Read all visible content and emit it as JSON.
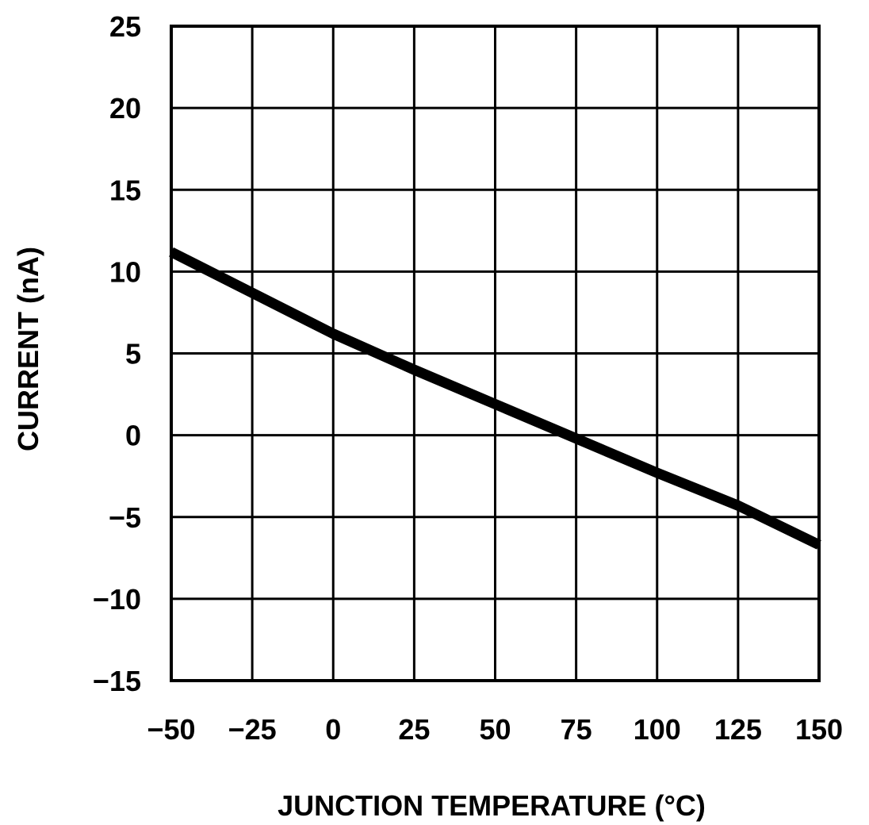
{
  "chart_data": {
    "type": "line",
    "title": "",
    "xlabel": "JUNCTION TEMPERATURE (°C)",
    "ylabel": "CURRENT (nA)",
    "xlim": [
      -50,
      150
    ],
    "ylim": [
      -15,
      25
    ],
    "x_ticks": [
      -50,
      -25,
      0,
      25,
      50,
      75,
      100,
      125,
      150
    ],
    "y_ticks": [
      -15,
      -10,
      -5,
      0,
      5,
      10,
      15,
      20,
      25
    ],
    "x_tick_labels": [
      "−50",
      "−25",
      "0",
      "25",
      "50",
      "75",
      "100",
      "125",
      "150"
    ],
    "y_tick_labels": [
      "−15",
      "−10",
      "−5",
      "0",
      "5",
      "10",
      "15",
      "20",
      "25"
    ],
    "grid": true,
    "legend": "none",
    "series": [
      {
        "x": [
          -50,
          -25,
          0,
          25,
          50,
          75,
          100,
          125,
          150
        ],
        "y": [
          11.2,
          8.7,
          6.2,
          4.0,
          1.9,
          -0.2,
          -2.3,
          -4.3,
          -6.7
        ],
        "color": "#000000"
      }
    ]
  }
}
